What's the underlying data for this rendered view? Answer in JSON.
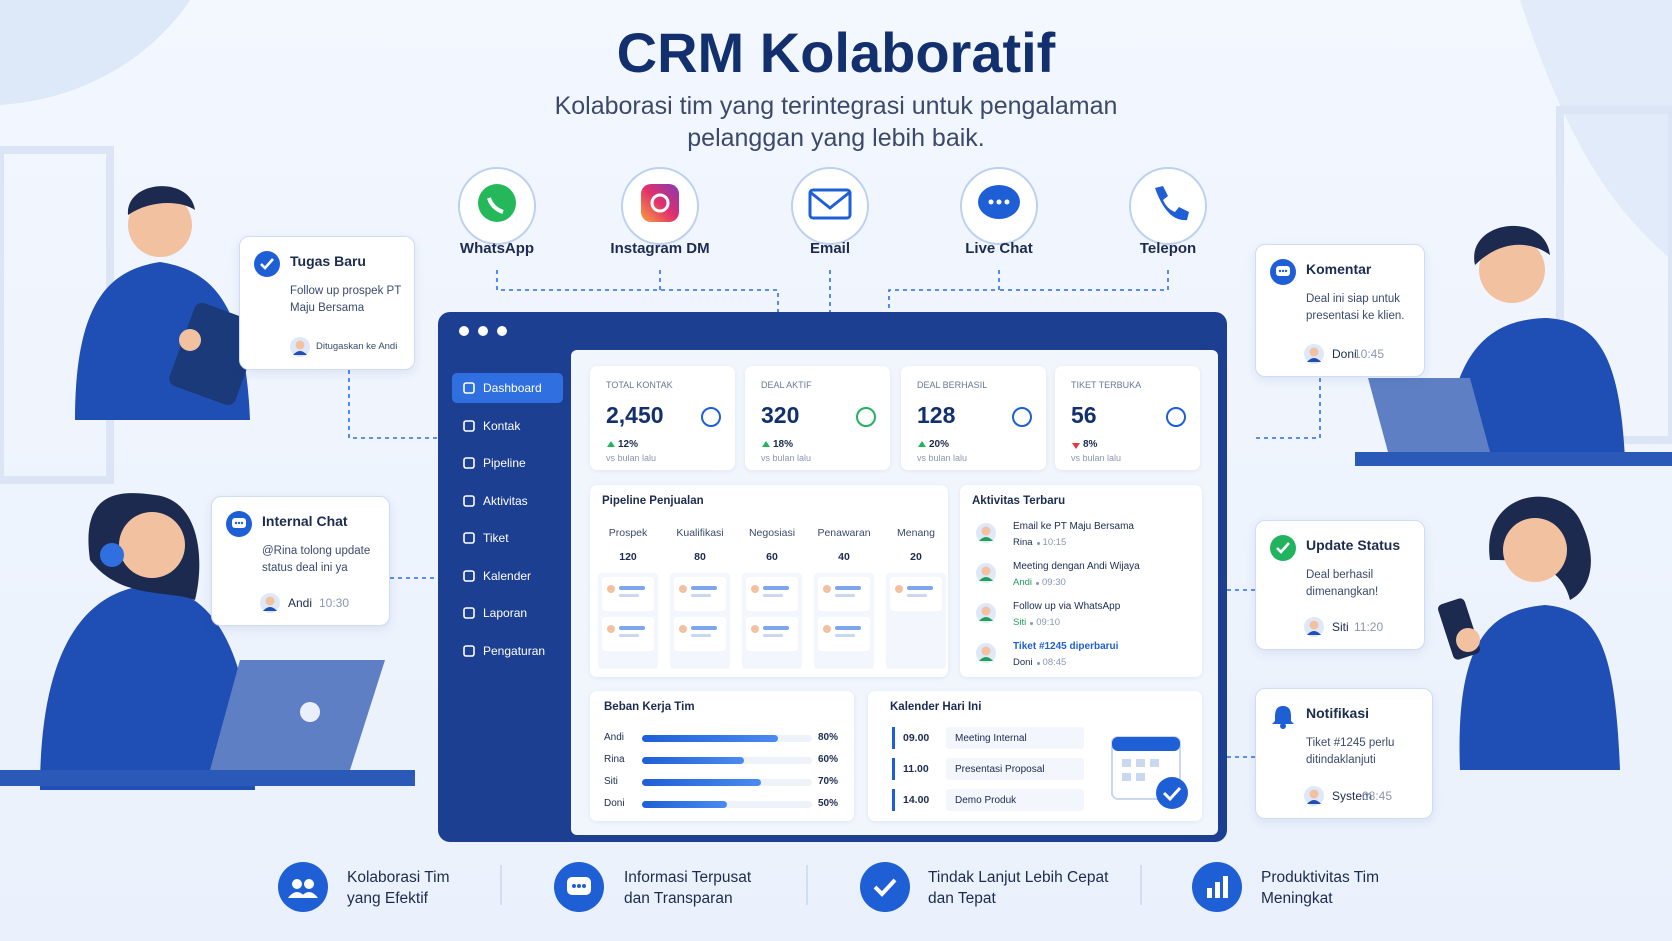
{
  "header": {
    "title": "CRM Kolaboratif",
    "subtitle": "Kolaborasi tim yang terintegrasi untuk pengalaman pelanggan yang lebih baik."
  },
  "channels": [
    "WhatsApp",
    "Instagram DM",
    "Email",
    "Live Chat",
    "Telepon"
  ],
  "cards": [
    {
      "title": "Tugas Baru",
      "text": "Follow up prospek PT Maju Bersama",
      "footer": "Ditugaskan ke Andi"
    },
    {
      "title": "Internal Chat",
      "text": "@Rina tolong update status deal ini ya",
      "user": "Andi",
      "time": "10:30"
    },
    {
      "title": "Komentar",
      "text": "Deal ini siap untuk presentasi ke klien.",
      "user": "Doni",
      "time": "10:45"
    },
    {
      "title": "Update Status",
      "text": "Deal berhasil dimenangkan!",
      "user": "Siti",
      "time": "11:20"
    },
    {
      "title": "Notifikasi",
      "text": "Tiket #1245 perlu ditindaklanjuti",
      "user": "System",
      "time": "08:45"
    }
  ],
  "dashboard": {
    "sidebar": [
      "Dashboard",
      "Kontak",
      "Pipeline",
      "Aktivitas",
      "Tiket",
      "Kalender",
      "Laporan",
      "Pengaturan"
    ],
    "kpis": [
      {
        "label": "TOTAL KONTAK",
        "value": "2,450",
        "change": "12%",
        "trend": "up",
        "note": "vs bulan lalu"
      },
      {
        "label": "DEAL AKTIF",
        "value": "320",
        "change": "18%",
        "trend": "up",
        "note": "vs bulan lalu"
      },
      {
        "label": "DEAL BERHASIL",
        "value": "128",
        "change": "20%",
        "trend": "up",
        "note": "vs bulan lalu"
      },
      {
        "label": "TIKET TERBUKA",
        "value": "56",
        "change": "8%",
        "trend": "down",
        "note": "vs bulan lalu"
      }
    ],
    "pipeline": {
      "title": "Pipeline Penjualan",
      "stages": [
        {
          "name": "Prospek",
          "count": 120
        },
        {
          "name": "Kualifikasi",
          "count": 80
        },
        {
          "name": "Negosiasi",
          "count": 60
        },
        {
          "name": "Penawaran",
          "count": 40
        },
        {
          "name": "Menang",
          "count": 20
        }
      ]
    },
    "activities": {
      "title": "Aktivitas Terbaru",
      "items": [
        {
          "text": "Email ke PT Maju Bersama",
          "user": "Rina",
          "time": "10:15"
        },
        {
          "text": "Meeting dengan Andi Wijaya",
          "user": "Andi",
          "time": "09:30"
        },
        {
          "text": "Follow up via WhatsApp",
          "user": "Siti",
          "time": "09:10"
        },
        {
          "text": "Tiket #1245 diperbarui",
          "user": "Doni",
          "time": "08:45"
        }
      ]
    },
    "workload": {
      "title": "Beban Kerja Tim",
      "members": [
        "Andi",
        "Rina",
        "Siti",
        "Doni"
      ],
      "values": [
        80,
        60,
        70,
        50
      ],
      "value_labels": [
        "80%",
        "60%",
        "70%",
        "50%"
      ],
      "xlim": [
        0,
        100
      ]
    },
    "calendar": {
      "title": "Kalender Hari Ini",
      "events": [
        {
          "time": "09.00",
          "title": "Meeting Internal"
        },
        {
          "time": "11.00",
          "title": "Presentasi Proposal"
        },
        {
          "time": "14.00",
          "title": "Demo Produk"
        }
      ]
    }
  },
  "benefits": [
    "Kolaborasi Tim yang Efektif",
    "Informasi Terpusat dan Transparan",
    "Tindak Lanjut Lebih Cepat dan Tepat",
    "Produktivitas Tim Meningkat"
  ]
}
